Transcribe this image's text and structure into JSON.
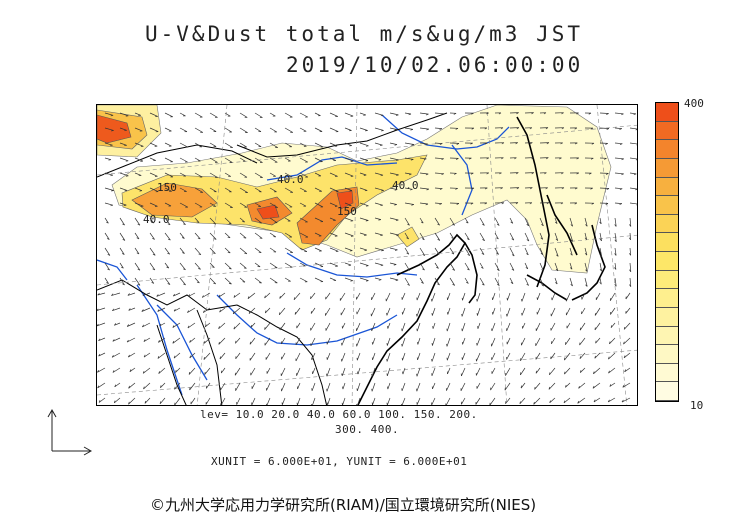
{
  "title": {
    "line1": "U-V&Dust total m/s&ug/m3 JST",
    "line2": "2019/10/02.06:00:00"
  },
  "legend": {
    "max_label": "400",
    "min_label": "10",
    "colors": [
      "#ee4f1a",
      "#f16a22",
      "#f3842c",
      "#f59a35",
      "#f7b03f",
      "#f9c34a",
      "#fbd356",
      "#fce05f",
      "#fde768",
      "#fdeb7a",
      "#feef8e",
      "#fef2a0",
      "#fef5b2",
      "#fef8c4",
      "#fffad3",
      "#fffce2"
    ]
  },
  "levels": {
    "line1": "lev= 10.0 20.0 40.0 60.0 100. 150. 200.",
    "line2": "300. 400."
  },
  "units_text": "XUNIT = 6.000E+01, YUNIT = 6.000E+01",
  "contour_labels": [
    "150",
    "40.0",
    "40.0",
    "40.0",
    "150"
  ],
  "copyright": "©九州大学応用力学研究所(RIAM)/国立環境研究所(NIES)"
}
